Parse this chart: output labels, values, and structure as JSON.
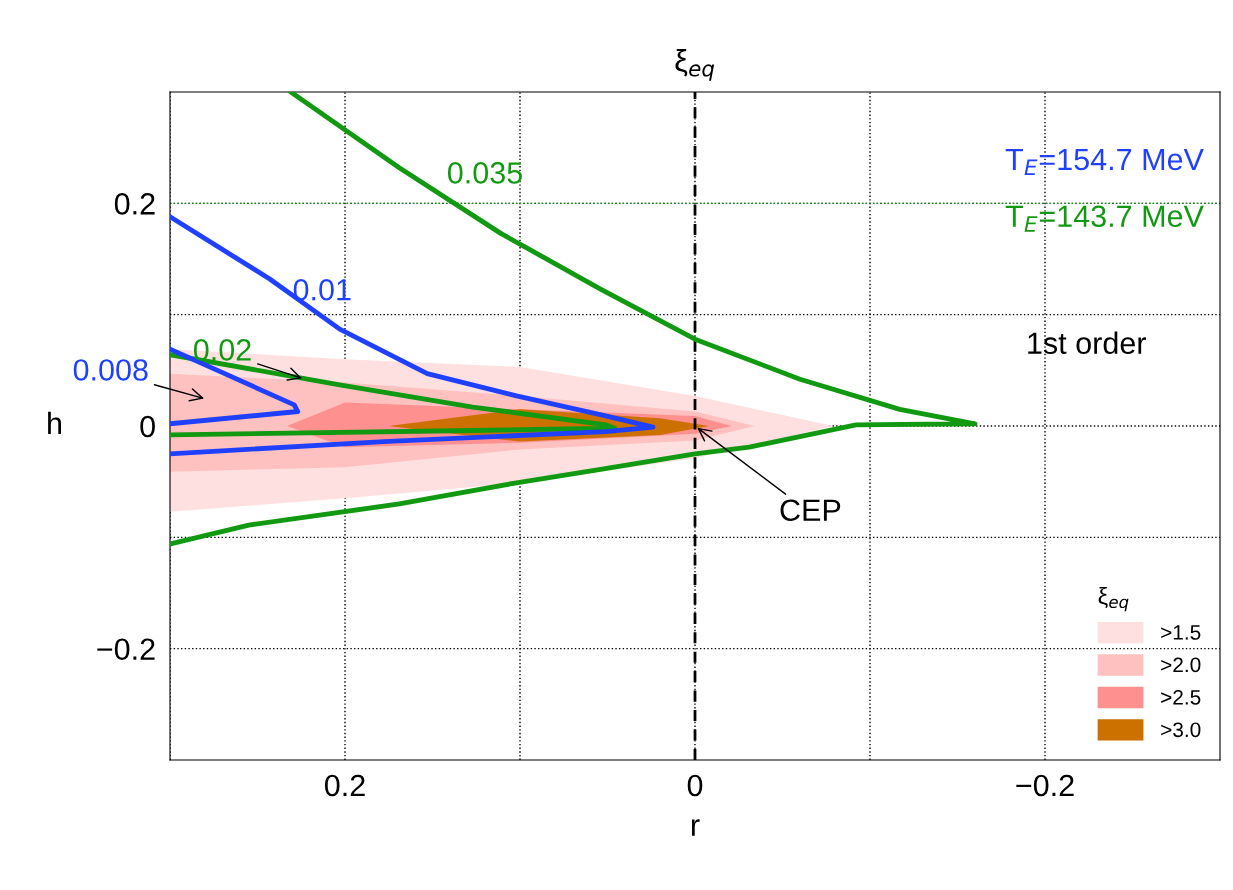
{
  "chart_data": {
    "type": "line",
    "xlabel": "r",
    "ylabel": "h",
    "legend_title": "ξ$_{eq}$",
    "legend": "bottom right",
    "grid": true,
    "line_style": "solid",
    "xlim": [
      0.3,
      -0.3
    ],
    "ylim": [
      -0.3,
      0.3
    ],
    "xticks": [
      {
        "value": 0.3,
        "label": null
      },
      {
        "value": 0.2,
        "label": "0.2"
      },
      {
        "value": 0.1,
        "label": null
      },
      {
        "value": 0,
        "label": "0"
      },
      {
        "value": -0.1,
        "label": null
      },
      {
        "value": -0.2,
        "label": "−0.2"
      }
    ],
    "yticks": [
      {
        "value": 0.2,
        "label": "0.2"
      },
      {
        "value": 0.1,
        "label": null
      },
      {
        "value": 0,
        "label": "0"
      },
      {
        "value": -0.1,
        "label": null
      },
      {
        "value": -0.2,
        "label": "−0.2"
      }
    ],
    "ref_lines": [
      {
        "axis": "x",
        "value": 0,
        "label": "ξ$_{eq}$",
        "color": "#000000",
        "line_style": "dashed"
      },
      {
        "axis": "y",
        "value": 0.2,
        "color": "#119911",
        "line_style": "dotted"
      }
    ],
    "series": [
      {
        "type": "area",
        "name": ">1.5",
        "color": "#ffe0e0",
        "x": [
          0.3,
          0.2,
          0.1,
          0,
          -0.079,
          0,
          0.1,
          0.2,
          0.3
        ],
        "values": [
          0.069,
          0.06,
          0.053,
          0.027,
          0,
          -0.029,
          -0.051,
          -0.065,
          -0.077
        ]
      },
      {
        "type": "area",
        "name": ">2.0",
        "color": "#ffc0c0",
        "x": [
          0.3,
          0.2,
          0.1,
          0,
          -0.034,
          0,
          0.1,
          0.2,
          0.3
        ],
        "values": [
          0.047,
          0.039,
          0.027,
          0.013,
          0,
          -0.013,
          -0.021,
          -0.037,
          -0.041
        ]
      },
      {
        "type": "area",
        "name": ">2.5",
        "color": "#ff9090",
        "x": [
          0.233,
          0.2,
          0.1,
          0,
          -0.021,
          0,
          0.1,
          0.2
        ],
        "values": [
          0,
          0.021,
          0.015,
          0.009,
          0,
          -0.007,
          -0.015,
          -0.019
        ]
      },
      {
        "type": "area",
        "name": ">3.0",
        "color": "#cc7000",
        "x": [
          0.175,
          0.1,
          0.02,
          -0.008,
          0.02,
          0.1
        ],
        "values": [
          0,
          0.015,
          0.007,
          0,
          -0.008,
          -0.014
        ]
      },
      {
        "name": "0.035",
        "color": "#119911",
        "x": [
          0.231,
          0.169,
          0.111,
          0.054,
          0,
          -0.06,
          -0.117,
          -0.16,
          -0.092,
          -0.031,
          0,
          0.054,
          0.102,
          0.169,
          0.255,
          0.3
        ],
        "values": [
          0.3,
          0.232,
          0.173,
          0.123,
          0.078,
          0.042,
          0.015,
          0.002,
          0.001,
          -0.019,
          -0.025,
          -0.039,
          -0.051,
          -0.07,
          -0.089,
          -0.106
        ]
      },
      {
        "name": "0.02",
        "color": "#119911",
        "x": [
          0.3,
          0.203,
          0.127,
          0.051,
          0.046,
          0.127,
          0.3
        ],
        "values": [
          0.064,
          0.037,
          0.017,
          0.001,
          -0.002,
          -0.004,
          -0.008
        ]
      },
      {
        "name": "0.01",
        "color": "#2040ff",
        "x": [
          0.3,
          0.243,
          0.203,
          0.153,
          0.102,
          0.051,
          0.024,
          0.051,
          0.178,
          0.3
        ],
        "values": [
          0.188,
          0.132,
          0.087,
          0.047,
          0.027,
          0.009,
          -0.001,
          -0.005,
          -0.014,
          -0.025
        ]
      },
      {
        "name": "0.008",
        "color": "#2040ff",
        "x": [
          0.3,
          0.229,
          0.227,
          0.3
        ],
        "values": [
          0.069,
          0.019,
          0.013,
          0.002
        ]
      }
    ],
    "annotations": [
      "T$_{E}$=154.7 MeV",
      "T$_{E}$=143.7 MeV",
      "1st order",
      {
        "text": "CEP",
        "x": 0,
        "y": 0
      }
    ]
  }
}
